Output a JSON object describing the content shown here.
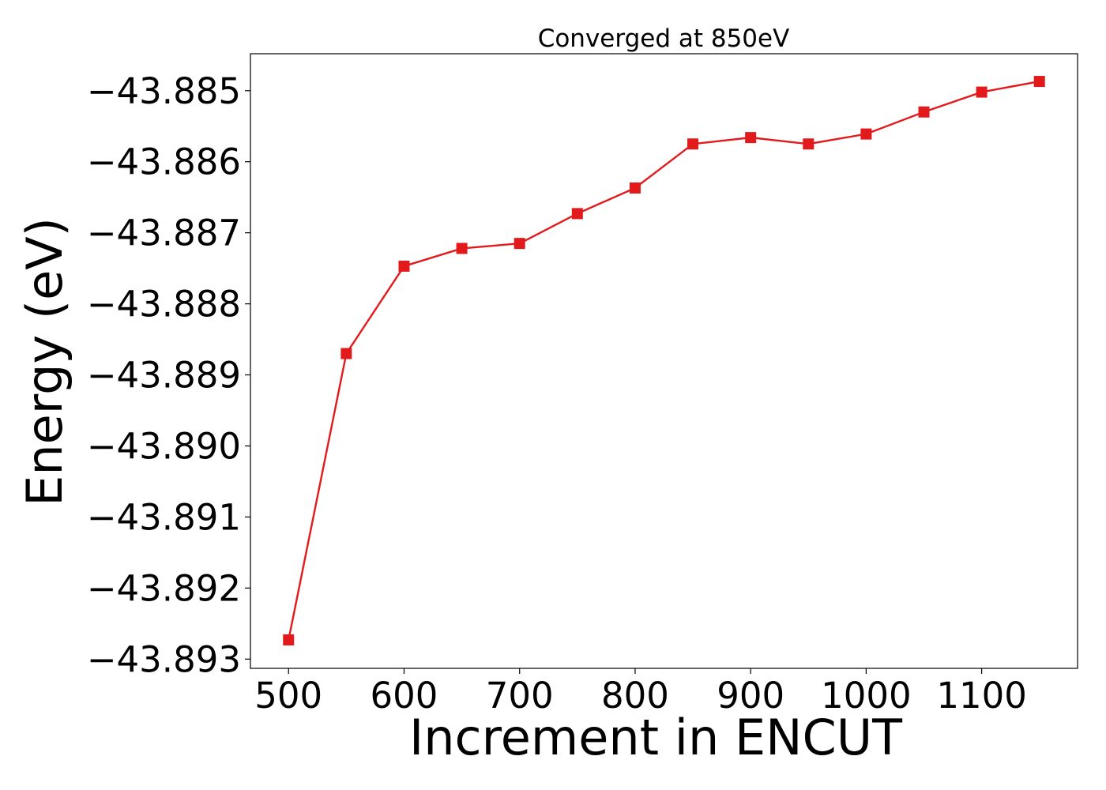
{
  "chart_data": {
    "type": "line",
    "title": "Converged at 850eV",
    "xlabel": "Increment in ENCUT",
    "ylabel": "Energy (eV)",
    "xlim": [
      467,
      1183
    ],
    "ylim": [
      -43.89313,
      -43.88448
    ],
    "x_ticks": [
      500,
      600,
      700,
      800,
      900,
      1000,
      1100
    ],
    "x_tick_labels": [
      "500",
      "600",
      "700",
      "800",
      "900",
      "1000",
      "1100"
    ],
    "y_ticks": [
      -43.885,
      -43.886,
      -43.887,
      -43.888,
      -43.889,
      -43.89,
      -43.891,
      -43.892,
      -43.893
    ],
    "y_tick_labels": [
      "−43.885",
      "−43.886",
      "−43.887",
      "−43.888",
      "−43.889",
      "−43.890",
      "−43.891",
      "−43.892",
      "−43.893"
    ],
    "grid": false,
    "series": [
      {
        "color": "#e31a1c",
        "marker": "square",
        "x": [
          500,
          550,
          600,
          650,
          700,
          750,
          800,
          850,
          900,
          950,
          1000,
          1050,
          1100,
          1150
        ],
        "y": [
          -43.89273,
          -43.8887,
          -43.88747,
          -43.88722,
          -43.88715,
          -43.88673,
          -43.88637,
          -43.88575,
          -43.88566,
          -43.88575,
          -43.88561,
          -43.8853,
          -43.88502,
          -43.88487
        ]
      }
    ]
  }
}
